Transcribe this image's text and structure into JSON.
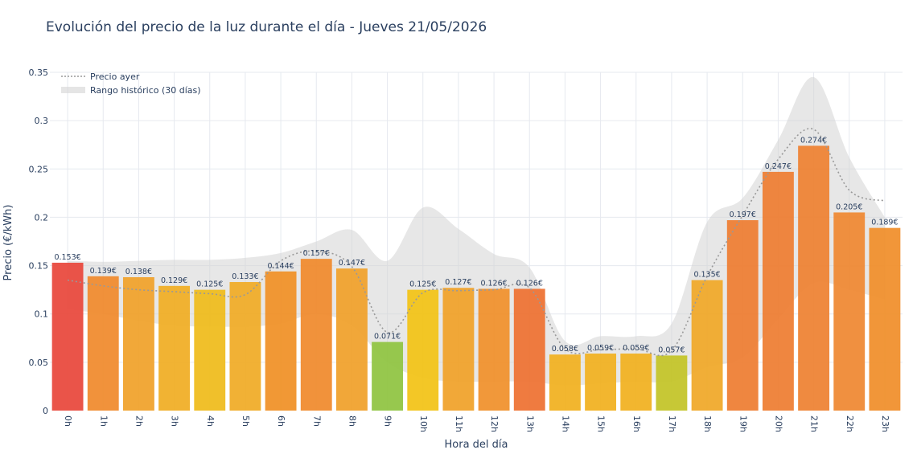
{
  "chart_data": {
    "type": "bar",
    "title": "Evolución del precio de la luz durante el día - Jueves 21/05/2026",
    "xlabel": "Hora del día",
    "ylabel": "Precio (€/kWh)",
    "ylim": [
      0,
      0.35
    ],
    "yticks": [
      0,
      0.05,
      0.1,
      0.15,
      0.2,
      0.25,
      0.3,
      0.35
    ],
    "ytick_labels": [
      "0",
      "0.05",
      "0.1",
      "0.15",
      "0.2",
      "0.25",
      "0.3",
      "0.35"
    ],
    "grid": true,
    "legend_position": "top-left",
    "categories": [
      "0h",
      "1h",
      "2h",
      "3h",
      "4h",
      "5h",
      "6h",
      "7h",
      "8h",
      "9h",
      "10h",
      "11h",
      "12h",
      "13h",
      "14h",
      "15h",
      "16h",
      "17h",
      "18h",
      "19h",
      "20h",
      "21h",
      "22h",
      "23h"
    ],
    "series": [
      {
        "type": "bar",
        "values": [
          0.153,
          0.139,
          0.138,
          0.129,
          0.125,
          0.133,
          0.144,
          0.157,
          0.147,
          0.071,
          0.125,
          0.127,
          0.126,
          0.126,
          0.058,
          0.059,
          0.059,
          0.057,
          0.135,
          0.197,
          0.247,
          0.274,
          0.205,
          0.189
        ],
        "labels": [
          "0.153€",
          "0.139€",
          "0.138€",
          "0.129€",
          "0.125€",
          "0.133€",
          "0.144€",
          "0.157€",
          "0.147€",
          "0.071€",
          "0.125€",
          "0.127€",
          "0.126€",
          "0.126€",
          "0.058€",
          "0.059€",
          "0.059€",
          "0.057€",
          "0.135€",
          "0.197€",
          "0.247€",
          "0.274€",
          "0.205€",
          "0.189€"
        ],
        "colors": [
          "#e8473b",
          "#f08a2c",
          "#f0a12a",
          "#f0ad24",
          "#efbb1b",
          "#f0ab26",
          "#f09026",
          "#f08a2c",
          "#f0a02a",
          "#8fc441",
          "#f2c316",
          "#f0a129",
          "#f0902b",
          "#ee7131",
          "#f1b01f",
          "#f1b01f",
          "#f1b01f",
          "#c3c427",
          "#f0a828",
          "#ee7d31",
          "#ee7d31",
          "#ee8131",
          "#ef8831",
          "#f08e2a"
        ]
      },
      {
        "name": "Precio ayer",
        "type": "line",
        "color": "#999999",
        "values": [
          0.135,
          0.129,
          0.125,
          0.123,
          0.121,
          0.12,
          0.155,
          0.165,
          0.149,
          0.081,
          0.122,
          0.124,
          0.125,
          0.127,
          0.064,
          0.063,
          0.064,
          0.062,
          0.139,
          0.202,
          0.26,
          0.291,
          0.228,
          0.217
        ]
      },
      {
        "name": "Rango histórico (30 días)",
        "type": "area",
        "color": "#d3d3d3",
        "lower": [
          0.105,
          0.1,
          0.093,
          0.088,
          0.087,
          0.087,
          0.09,
          0.1,
          0.088,
          0.05,
          0.034,
          0.03,
          0.03,
          0.03,
          0.026,
          0.028,
          0.03,
          0.03,
          0.045,
          0.055,
          0.095,
          0.132,
          0.125,
          0.115
        ],
        "upper": [
          0.155,
          0.154,
          0.155,
          0.156,
          0.156,
          0.158,
          0.163,
          0.175,
          0.187,
          0.155,
          0.21,
          0.188,
          0.162,
          0.148,
          0.072,
          0.077,
          0.077,
          0.09,
          0.195,
          0.22,
          0.28,
          0.345,
          0.262,
          0.2
        ]
      }
    ]
  }
}
